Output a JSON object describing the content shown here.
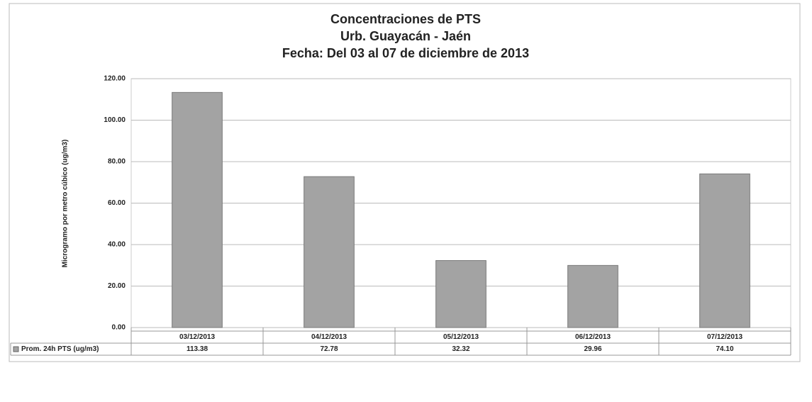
{
  "chart_data": {
    "type": "bar",
    "title": "Concentraciones de PTS",
    "subtitle": [
      "Urb. Guayacán - Jaén",
      "Fecha: Del 03 al 07 de diciembre de 2013"
    ],
    "y_label": "Microgramo por metro cúbico (ug/m3)",
    "categories": [
      "03/12/2013",
      "04/12/2013",
      "05/12/2013",
      "06/12/2013",
      "07/12/2013"
    ],
    "series": [
      {
        "name": "Prom. 24h PTS (ug/m3)",
        "color": "#a3a3a3",
        "values": [
          113.38,
          72.78,
          32.32,
          29.96,
          74.1
        ],
        "value_labels": [
          "113.38",
          "72.78",
          "32.32",
          "29.96",
          "74.10"
        ]
      }
    ],
    "ylim": [
      0,
      120
    ],
    "yticks": [
      {
        "value": 0,
        "label": "0.00"
      },
      {
        "value": 20,
        "label": "20.00"
      },
      {
        "value": 40,
        "label": "40.00"
      },
      {
        "value": 60,
        "label": "60.00"
      },
      {
        "value": 80,
        "label": "80.00"
      },
      {
        "value": 100,
        "label": "100.00"
      },
      {
        "value": 120,
        "label": "120.00"
      }
    ],
    "grid": true
  }
}
